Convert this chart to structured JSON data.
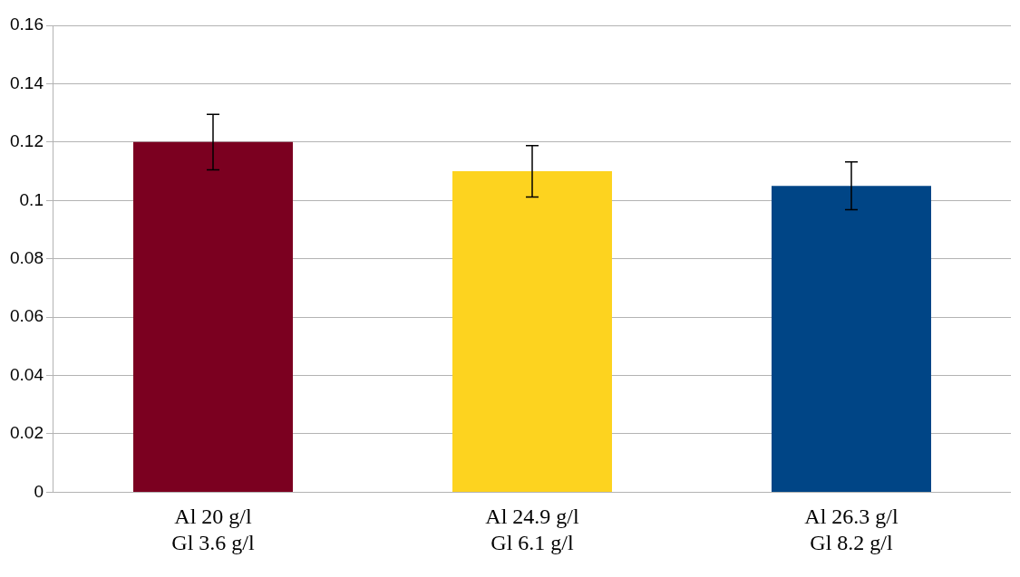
{
  "chart_data": {
    "type": "bar",
    "categories": [
      "Al 20 g/l\nGl 3.6 g/l",
      "Al 24.9 g/l\nGl 6.1 g/l",
      "Al 26.3 g/l\nGl 8.2 g/l"
    ],
    "values": [
      0.12,
      0.11,
      0.105
    ],
    "colors": [
      "#7b0020",
      "#fdd31f",
      "#004586"
    ],
    "errors": [
      0.0095,
      0.0088,
      0.0082
    ],
    "ylim": [
      0,
      0.16
    ],
    "yticks": [
      0,
      0.02,
      0.04,
      0.06,
      0.08,
      0.1,
      0.12,
      0.14,
      0.16
    ],
    "grid": "y",
    "legend": false
  }
}
